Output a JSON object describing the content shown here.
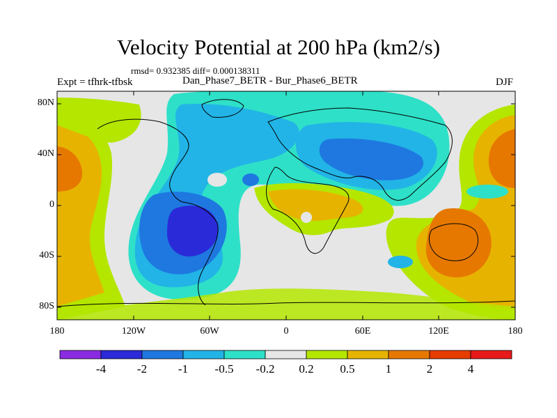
{
  "header": {
    "title": "Velocity Potential at 200 hPa (km2/s)",
    "stats": "rmsd= 0.932385 diff= 0.000138311",
    "experiment": "Expt = tfhrk-tfbsk",
    "subtitle": "Dan_Phase7_BETR - Bur_Phase6_BETR",
    "season": "DJF"
  },
  "axes": {
    "lat_labels": [
      "80N",
      "40N",
      "0",
      "40S",
      "80S"
    ],
    "lon_labels": [
      "180",
      "120W",
      "60W",
      "0",
      "60E",
      "120E",
      "180"
    ]
  },
  "colorbar": {
    "labels": [
      "-4",
      "-2",
      "-1",
      "-0.5",
      "-0.2",
      "0.2",
      "0.5",
      "1",
      "2",
      "4"
    ],
    "colors": [
      "#8a2be2",
      "#2a2ad8",
      "#1e78e0",
      "#22b4e6",
      "#2ee0c8",
      "#e6e6e6",
      "#b4e600",
      "#e6b400",
      "#e67800",
      "#e63c00",
      "#e61a1a"
    ]
  }
}
